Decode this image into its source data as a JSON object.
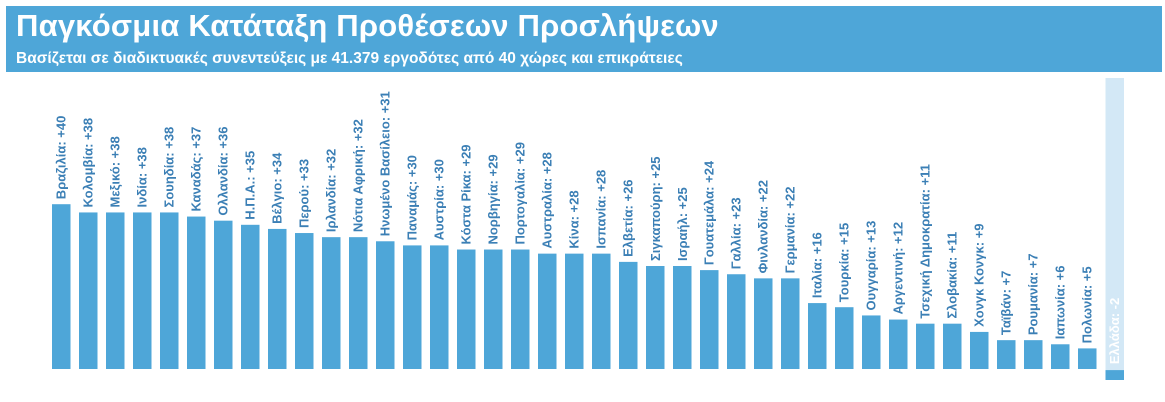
{
  "title": "Παγκόσμια Κατάταξη Προθέσεων Προσλήψεων",
  "subtitle": "Βασίζεται σε διαδικτυακές συνεντεύξεις με 41.379 εργοδότες από 40 χώρες και επικράτειες",
  "colors": {
    "header": "#4ea6d8",
    "bar": "#4ea6d8",
    "negative_band": "#d3e8f6",
    "label": "#3b7fb5",
    "negative_label": "#ffffff"
  },
  "chart_data": {
    "type": "bar",
    "orientation": "vertical",
    "title": "Παγκόσμια Κατάταξη Προθέσεων Προσλήψεων",
    "subtitle": "Βασίζεται σε διαδικτυακές συνεντεύξεις με 41.379 εργοδότες από 40 χώρες και επικράτειες",
    "categories": [
      "Βραζιλία",
      "Κολομβία",
      "Μεξικό",
      "Ινδία",
      "Σουηδία",
      "Καναδάς",
      "Ολλανδία",
      "Η.Π.Α.",
      "Βέλγιο",
      "Περού",
      "Ιρλανδία",
      "Νότια Αφρική",
      "Ηνωμένο Βασίλειο",
      "Παναμάς",
      "Αυστρία",
      "Κόστα Ρίκα",
      "Νορβηγία",
      "Πορτογαλία",
      "Αυστραλία",
      "Κίνα",
      "Ισπανία",
      "Ελβετία",
      "Σιγκαπούρη",
      "Ισραήλ",
      "Γουατεμάλα",
      "Γαλλία",
      "Φινλανδία",
      "Γερμανία",
      "Ιταλία",
      "Τουρκία",
      "Ουγγαρία",
      "Αργεντινή",
      "Τσεχική Δημοκρατία",
      "Σλοβακία",
      "Χονγκ Κονγκ",
      "Ταϊβάν",
      "Ρουμανία",
      "Ιαπωνία",
      "Πολωνία",
      "Ελλάδα"
    ],
    "values": [
      40,
      38,
      38,
      38,
      38,
      37,
      36,
      35,
      34,
      33,
      32,
      32,
      31,
      30,
      30,
      29,
      29,
      29,
      28,
      28,
      28,
      26,
      25,
      25,
      24,
      23,
      22,
      22,
      16,
      15,
      13,
      12,
      11,
      11,
      9,
      7,
      7,
      6,
      5,
      -2
    ],
    "labels": [
      "Βραζιλία: +40",
      "Κολομβία: +38",
      "Μεξικό: +38",
      "Ινδία: +38",
      "Σουηδία: +38",
      "Καναδάς: +37",
      "Ολλανδία: +36",
      "Η.Π.Α.: +35",
      "Βέλγιο: +34",
      "Περού: +33",
      "Ιρλανδία: +32",
      "Νότια Αφρική: +32",
      "Ηνωμένο Βασίλειο: +31",
      "Παναμάς: +30",
      "Αυστρία: +30",
      "Κόστα Ρίκα: +29",
      "Νορβηγία: +29",
      "Πορτογαλία: +29",
      "Αυστραλία: +28",
      "Κίνα: +28",
      "Ισπανία: +28",
      "Ελβετία: +26",
      "Σιγκαπούρη: +25",
      "Ισραήλ: +25",
      "Γουατεμάλα: +24",
      "Γαλλία: +23",
      "Φινλανδία: +22",
      "Γερμανία: +22",
      "Ιταλία: +16",
      "Τουρκία: +15",
      "Ουγγαρία: +13",
      "Αργεντινή: +12",
      "Τσεχική Δημοκρατία: +11",
      "Σλοβακία: +11",
      "Χονγκ Κονγκ: +9",
      "Ταϊβάν: +7",
      "Ρουμανία: +7",
      "Ιαπωνία: +6",
      "Πολωνία: +5",
      "Ελλάδα: -2"
    ],
    "ylim": [
      -2,
      40
    ],
    "grid": false,
    "legend": "none"
  }
}
